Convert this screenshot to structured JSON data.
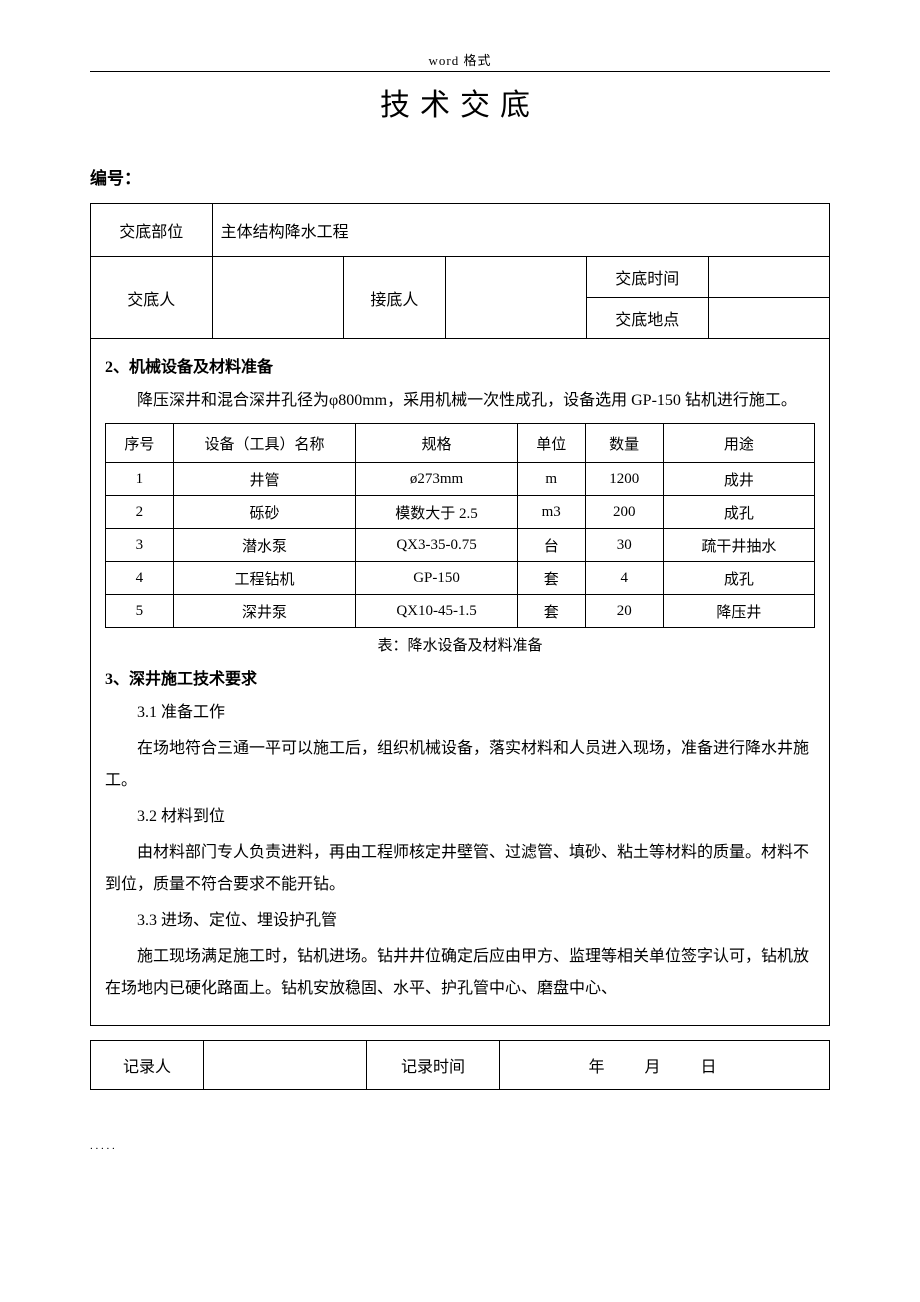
{
  "header_label": "word 格式",
  "title": "技术交底",
  "bianhao_label": "编号：",
  "meta": {
    "jiaodi_buwei_label": "交底部位",
    "jiaodi_buwei_value": "主体结构降水工程",
    "jiaodiren_label": "交底人",
    "jiediren_label": "接底人",
    "jiaodi_shijian_label": "交底时间",
    "jiaodi_didian_label": "交底地点"
  },
  "section2": {
    "heading": "2、机械设备及材料准备",
    "para": "降压深井和混合深井孔径为φ800mm，采用机械一次性成孔，设备选用 GP-150 钻机进行施工。"
  },
  "equip_table": {
    "headers": [
      "序号",
      "设备（工具）名称",
      "规格",
      "单位",
      "数量",
      "用途"
    ],
    "rows": [
      [
        "1",
        "井管",
        "ø273mm",
        "m",
        "1200",
        "成井"
      ],
      [
        "2",
        "砾砂",
        "模数大于 2.5",
        "m3",
        "200",
        "成孔"
      ],
      [
        "3",
        "潜水泵",
        "QX3-35-0.75",
        "台",
        "30",
        "疏干井抽水"
      ],
      [
        "4",
        "工程钻机",
        "GP-150",
        "套",
        "4",
        "成孔"
      ],
      [
        "5",
        "深井泵",
        "QX10-45-1.5",
        "套",
        "20",
        "降压井"
      ]
    ],
    "caption": "表：降水设备及材料准备"
  },
  "section3": {
    "heading": "3、深井施工技术要求",
    "s31_head": "3.1 准备工作",
    "s31_para": "在场地符合三通一平可以施工后，组织机械设备，落实材料和人员进入现场，准备进行降水井施工。",
    "s32_head": "3.2 材料到位",
    "s32_para": "由材料部门专人负责进料，再由工程师核定井壁管、过滤管、填砂、粘土等材料的质量。材料不到位，质量不符合要求不能开钻。",
    "s33_head": "3.3 进场、定位、埋设护孔管",
    "s33_para": "施工现场满足施工时，钻机进场。钻井井位确定后应由甲方、监理等相关单位签字认可，钻机放在场地内已硬化路面上。钻机安放稳固、水平、护孔管中心、磨盘中心、"
  },
  "footer": {
    "jiluren_label": "记录人",
    "jilu_shijian_label": "记录时间",
    "year": "年",
    "month": "月",
    "day": "日"
  },
  "col_widths": {
    "equip": [
      "60px",
      "170px",
      "150px",
      "60px",
      "70px",
      "140px"
    ]
  }
}
